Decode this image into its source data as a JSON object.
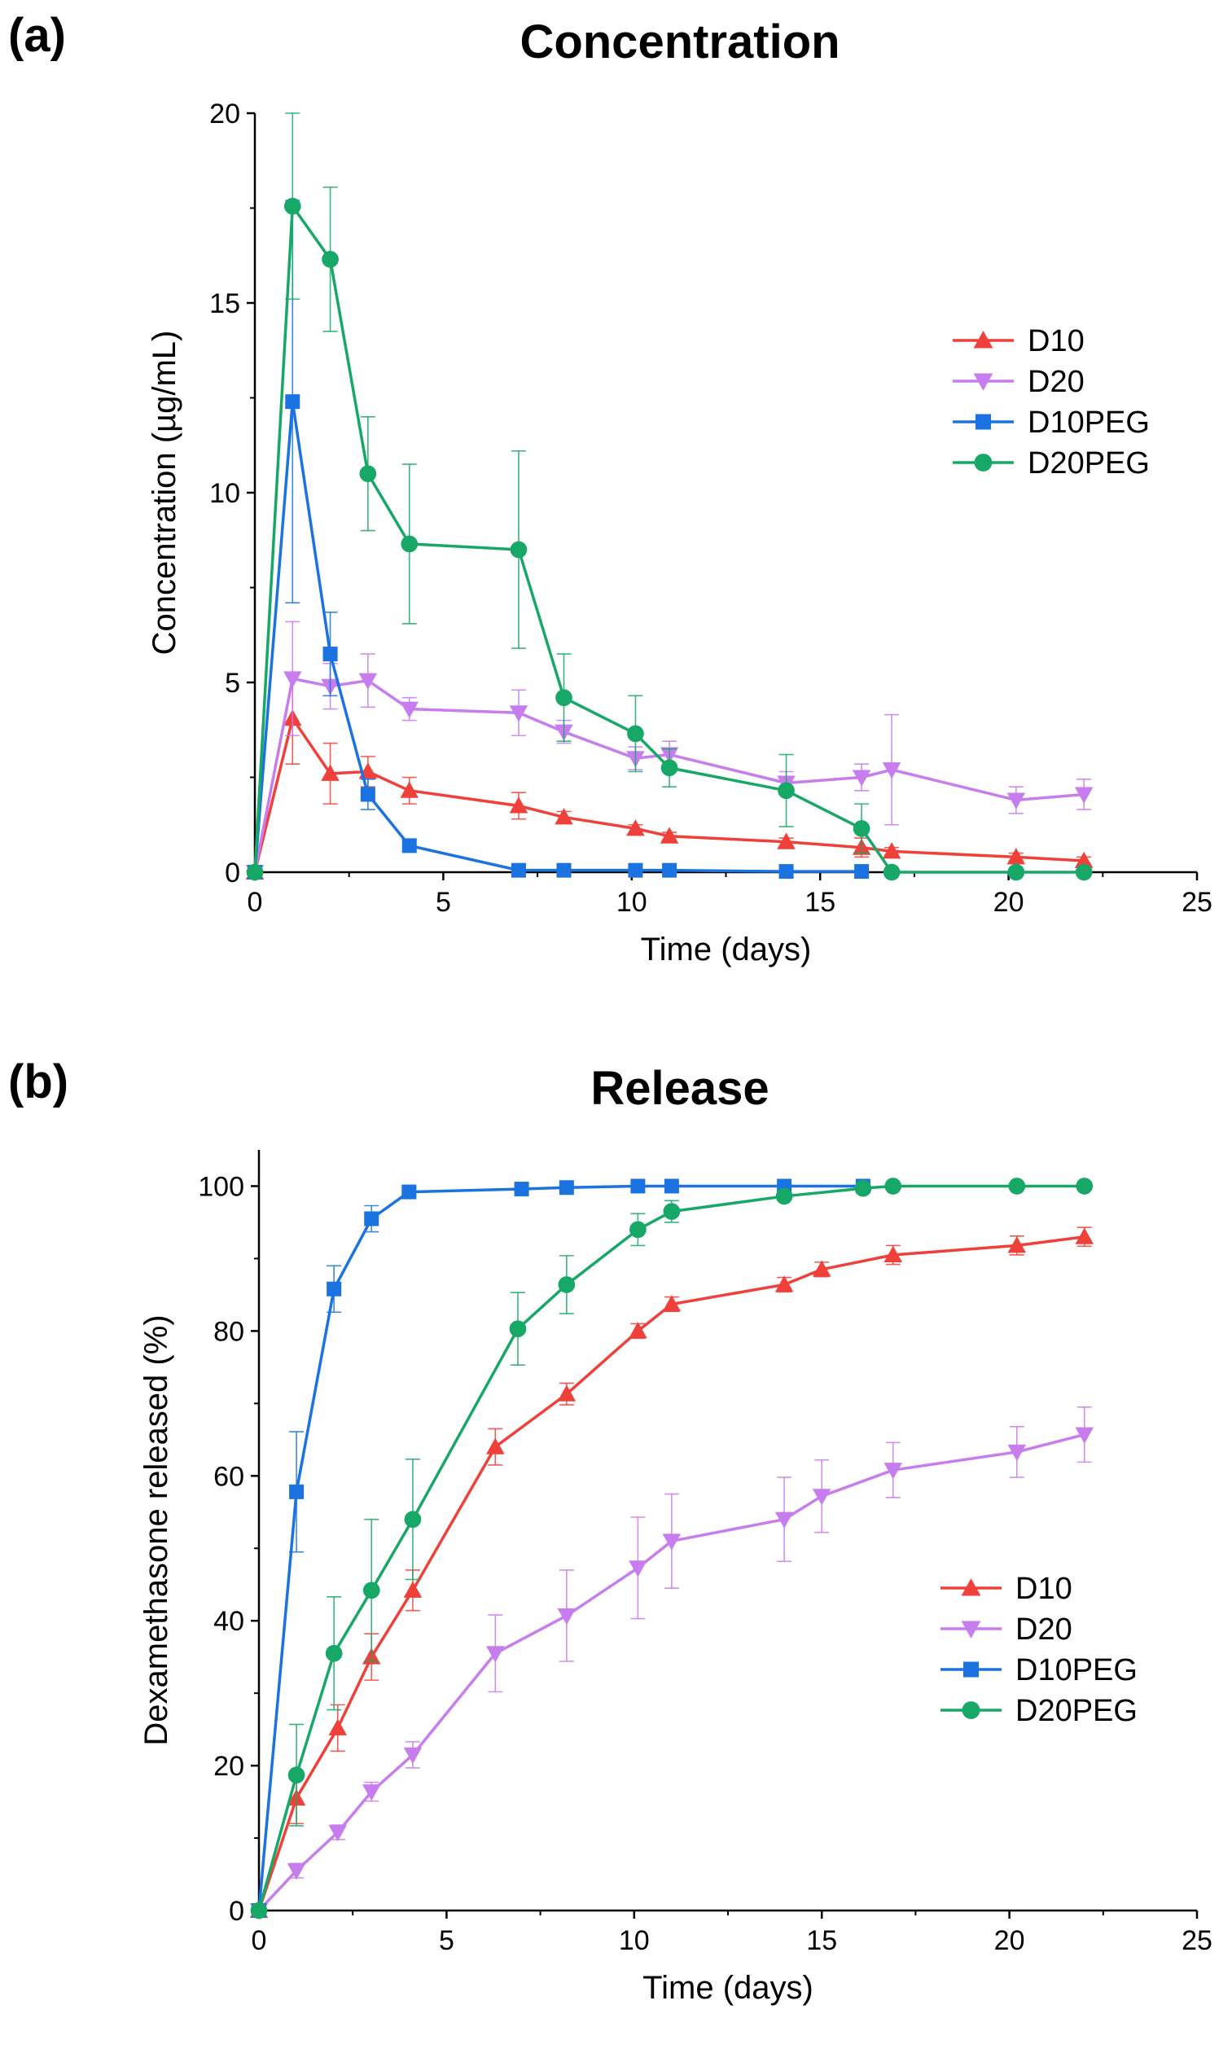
{
  "chart_data": [
    {
      "type": "line",
      "panel": "(a)",
      "title": "Concentration",
      "xlabel": "Time (days)",
      "ylabel": "Concentration (µg/mL)",
      "xlim": [
        0,
        25
      ],
      "ylim": [
        0,
        20
      ],
      "xticks": [
        0,
        5,
        10,
        15,
        20,
        25
      ],
      "yticks": [
        0,
        5,
        10,
        15,
        20
      ],
      "xtick_labels": [
        "0",
        "5",
        "10",
        "15",
        "20",
        "25"
      ],
      "ytick_labels": [
        "0",
        "5",
        "10",
        "15",
        "20"
      ],
      "grid": false,
      "legend_position": "upper-right",
      "series": [
        {
          "name": "D10",
          "color": "#F0403A",
          "marker": "triangle-up",
          "x": [
            0,
            1,
            2,
            3,
            4.1,
            7,
            8.2,
            10.1,
            11,
            14.1,
            16.1,
            16.9,
            20.2,
            22
          ],
          "y": [
            0,
            4.05,
            2.6,
            2.65,
            2.15,
            1.75,
            1.45,
            1.15,
            0.95,
            0.8,
            0.65,
            0.55,
            0.4,
            0.3
          ],
          "err": [
            0,
            1.2,
            0.8,
            0.4,
            0.35,
            0.35,
            0.15,
            0.1,
            0.1,
            0.1,
            0.25,
            0.1,
            0.1,
            0.1
          ]
        },
        {
          "name": "D20",
          "color": "#C77DEE",
          "marker": "triangle-down",
          "x": [
            0,
            1,
            2,
            3,
            4.1,
            7,
            8.2,
            10.1,
            11,
            14.1,
            16.1,
            16.9,
            20.2,
            22
          ],
          "y": [
            0,
            5.1,
            4.9,
            5.05,
            4.3,
            4.2,
            3.7,
            3.0,
            3.1,
            2.35,
            2.5,
            2.7,
            1.9,
            2.05
          ],
          "err": [
            0,
            1.5,
            0.6,
            0.7,
            0.3,
            0.6,
            0.3,
            0.3,
            0.35,
            0.3,
            0.35,
            1.45,
            0.35,
            0.4
          ]
        },
        {
          "name": "D10PEG",
          "color": "#1A73E0",
          "marker": "square",
          "x": [
            0,
            1,
            2,
            3,
            4.1,
            7,
            8.2,
            10.1,
            11,
            14.1,
            16.1
          ],
          "y": [
            0,
            12.4,
            5.75,
            2.05,
            0.7,
            0.05,
            0.05,
            0.05,
            0.05,
            0.02,
            0.02
          ],
          "err": [
            0,
            5.3,
            1.1,
            0.4,
            0.15,
            0,
            0,
            0,
            0,
            0,
            0
          ]
        },
        {
          "name": "D20PEG",
          "color": "#17A868",
          "marker": "circle",
          "x": [
            0,
            1,
            2,
            3,
            4.1,
            7,
            8.2,
            10.1,
            11,
            14.1,
            16.1,
            16.9,
            20.2,
            22
          ],
          "y": [
            0,
            17.55,
            16.15,
            10.5,
            8.65,
            8.5,
            4.6,
            3.65,
            2.75,
            2.15,
            1.15,
            0,
            0,
            0
          ],
          "err": [
            0,
            2.45,
            1.9,
            1.5,
            2.1,
            2.6,
            1.15,
            1.0,
            0.5,
            0.95,
            0.65,
            0,
            0,
            0
          ]
        }
      ]
    },
    {
      "type": "line",
      "panel": "(b)",
      "title": "Release",
      "xlabel": "Time (days)",
      "ylabel": "Dexamethasone released (%)",
      "xlim": [
        0,
        25
      ],
      "ylim": [
        0,
        105
      ],
      "xticks": [
        0,
        5,
        10,
        15,
        20,
        25
      ],
      "yticks": [
        0,
        20,
        40,
        60,
        80,
        100
      ],
      "xtick_labels": [
        "0",
        "5",
        "10",
        "15",
        "20",
        "25"
      ],
      "ytick_labels": [
        "0",
        "20",
        "40",
        "60",
        "80",
        "100"
      ],
      "grid": false,
      "legend_position": "lower-right",
      "series": [
        {
          "name": "D10",
          "color": "#F0403A",
          "marker": "triangle-up",
          "x": [
            0,
            1,
            2.1,
            3,
            4.1,
            6.3,
            8.2,
            10.1,
            11,
            14,
            15,
            16.9,
            20.2,
            22
          ],
          "y": [
            0,
            15.5,
            25.2,
            35,
            44.2,
            64,
            71.3,
            80,
            83.7,
            86.4,
            88.5,
            90.5,
            91.8,
            93
          ],
          "err": [
            0,
            3.5,
            3.2,
            3.2,
            2.8,
            2.5,
            1.5,
            1,
            1,
            1,
            1,
            1.3,
            1.3,
            1.3
          ]
        },
        {
          "name": "D20",
          "color": "#C77DEE",
          "marker": "triangle-down",
          "x": [
            0,
            1,
            2.1,
            3,
            4.1,
            6.3,
            8.2,
            10.1,
            11,
            14,
            15,
            16.9,
            20.2,
            22
          ],
          "y": [
            0,
            5.5,
            10.8,
            16.4,
            21.5,
            35.5,
            40.7,
            47.3,
            51,
            54,
            57.2,
            60.8,
            63.3,
            65.7
          ],
          "err": [
            0,
            1,
            1,
            1.3,
            1.8,
            5.3,
            6.3,
            7,
            6.5,
            5.8,
            5,
            3.8,
            3.5,
            3.8
          ]
        },
        {
          "name": "D10PEG",
          "color": "#1A73E0",
          "marker": "square",
          "x": [
            0,
            1,
            2,
            3,
            4,
            7,
            8.2,
            10.1,
            11,
            14,
            16.1
          ],
          "y": [
            0,
            57.8,
            85.8,
            95.5,
            99.2,
            99.6,
            99.8,
            100,
            100,
            100,
            100
          ],
          "err": [
            0,
            8.3,
            3.2,
            1.8,
            0.5,
            0.3,
            0.2,
            0,
            0,
            0,
            0
          ]
        },
        {
          "name": "D20PEG",
          "color": "#17A868",
          "marker": "circle",
          "x": [
            0,
            1,
            2,
            3,
            4.1,
            6.9,
            8.2,
            10.1,
            11,
            14,
            16.1,
            16.9,
            20.2,
            22
          ],
          "y": [
            0,
            18.7,
            35.5,
            44.2,
            54,
            80.3,
            86.4,
            94,
            96.5,
            98.6,
            99.7,
            100,
            100,
            100
          ],
          "err": [
            0,
            7,
            7.8,
            9.8,
            8.3,
            5,
            4,
            2.2,
            1.5,
            0.5,
            0.3,
            0,
            0,
            0
          ]
        }
      ]
    }
  ]
}
